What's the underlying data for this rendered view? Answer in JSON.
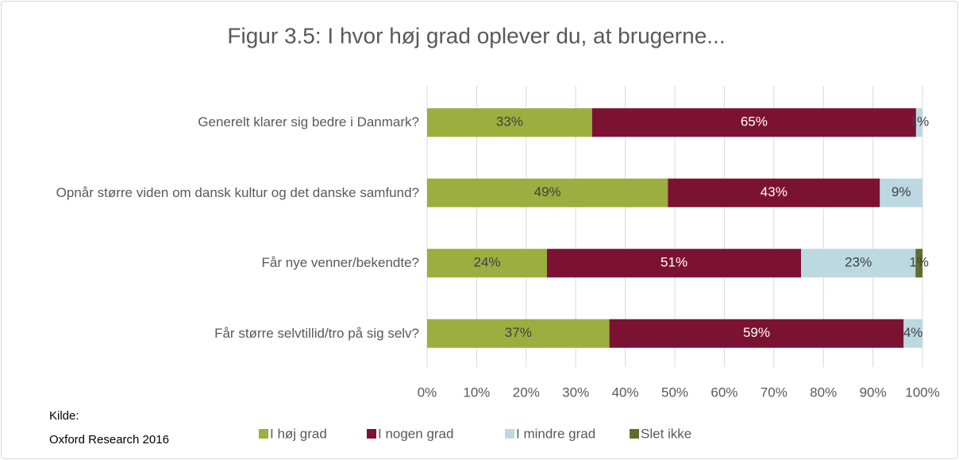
{
  "chart_data": {
    "type": "stacked-bar-horizontal",
    "title": "Figur 3.5: I hvor høj grad oplever du, at brugerne...",
    "categories": [
      "Generelt klarer sig bedre i Danmark?",
      "Opnår større viden om dansk kultur og det danske samfund?",
      "Får nye venner/bekendte?",
      "Får større selvtillid/tro på sig selv?"
    ],
    "series": [
      {
        "name": "I høj grad",
        "color": "#9bae3f",
        "values": [
          33.3,
          48.6,
          24.2,
          36.8
        ],
        "value_labels": [
          "33%",
          "49%",
          "24%",
          "37%"
        ]
      },
      {
        "name": "I nogen grad",
        "color": "#7c1232",
        "values": [
          65.4,
          42.8,
          51.3,
          59.4
        ],
        "value_labels": [
          "65%",
          "43%",
          "51%",
          "59%"
        ]
      },
      {
        "name": "I mindre grad",
        "color": "#bcd9e1",
        "values": [
          1.3,
          8.6,
          23.1,
          3.8
        ],
        "value_labels": [
          "1%",
          "9%",
          "23%",
          "4%"
        ]
      },
      {
        "name": "Slet ikke",
        "color": "#5f6d2a",
        "values": [
          null,
          null,
          1.4,
          null
        ],
        "value_labels": [
          null,
          null,
          "1%",
          null
        ]
      }
    ],
    "xlim": [
      0,
      100
    ],
    "xticks": [
      {
        "value": 0,
        "label": "0%"
      },
      {
        "value": 10,
        "label": "10%"
      },
      {
        "value": 20,
        "label": "20%"
      },
      {
        "value": 30,
        "label": "30%"
      },
      {
        "value": 40,
        "label": "40%"
      },
      {
        "value": 50,
        "label": "50%"
      },
      {
        "value": 60,
        "label": "60%"
      },
      {
        "value": 70,
        "label": "70%"
      },
      {
        "value": 80,
        "label": "80%"
      },
      {
        "value": 90,
        "label": "90%"
      },
      {
        "value": 100,
        "label": "100%"
      }
    ],
    "grid": true,
    "legend": "bottom",
    "source_label": "Kilde:",
    "source": "Oxford Research 2016"
  }
}
